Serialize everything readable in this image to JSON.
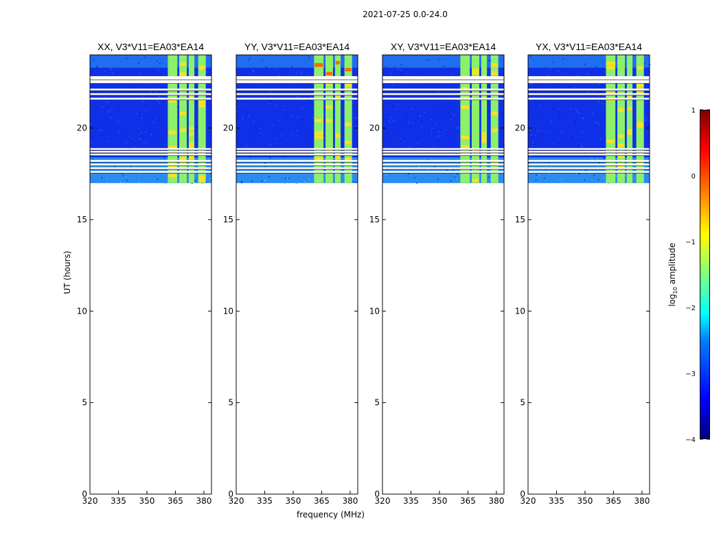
{
  "chart_data": {
    "type": "heatmap",
    "suptitle": "2021-07-25 0.0-24.0",
    "xlabel": "frequency (MHz)",
    "ylabel": "UT (hours)",
    "x_ticks": [
      "320",
      "335",
      "350",
      "365",
      "380"
    ],
    "x_tick_values": [
      320,
      335,
      350,
      365,
      380
    ],
    "xlim": [
      320,
      384
    ],
    "y_ticks": [
      "0",
      "5",
      "10",
      "15",
      "20"
    ],
    "y_tick_values": [
      0,
      5,
      10,
      15,
      20
    ],
    "ylim": [
      0,
      24
    ],
    "data_time_range": [
      17.0,
      24.0
    ],
    "panels": [
      {
        "title": "XX, V3*V11=EA03*EA14",
        "bright_bands_mhz": [
          [
            361,
            366
          ],
          [
            367,
            371
          ],
          [
            372,
            375
          ],
          [
            377,
            381
          ]
        ]
      },
      {
        "title": "YY, V3*V11=EA03*EA14",
        "bright_bands_mhz": [
          [
            361,
            366
          ],
          [
            367,
            371
          ],
          [
            372,
            375
          ],
          [
            377,
            381
          ]
        ]
      },
      {
        "title": "XY, V3*V11=EA03*EA14",
        "bright_bands_mhz": [
          [
            361,
            366
          ],
          [
            367,
            371
          ],
          [
            372,
            375
          ],
          [
            377,
            381
          ]
        ]
      },
      {
        "title": "YX, V3*V11=EA03*EA14",
        "bright_bands_mhz": [
          [
            361,
            366
          ],
          [
            367,
            371
          ],
          [
            372,
            375
          ],
          [
            377,
            381
          ]
        ]
      }
    ],
    "colorbar": {
      "label": "log10 amplitude",
      "ticks": [
        "1",
        "0",
        "−1",
        "−2",
        "−3",
        "−4"
      ],
      "tick_values": [
        1,
        0,
        -1,
        -2,
        -3,
        -4
      ],
      "range": [
        -4,
        1
      ]
    },
    "flagged_gaps_hours": [
      17.6,
      17.8,
      18.0,
      18.2,
      18.55,
      18.7,
      18.85,
      21.6,
      21.85,
      22.1,
      22.5,
      22.7
    ]
  }
}
